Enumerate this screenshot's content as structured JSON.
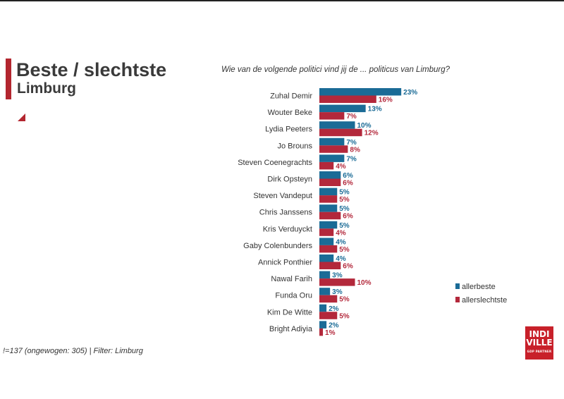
{
  "header": {
    "title": "Beste / slechtste",
    "subtitle": "Limburg",
    "question": "Wie van de volgende politici vind jij de ... politicus van Limburg?"
  },
  "footnote": "!=137 (ongewogen: 305) | Filter: Limburg",
  "logo": {
    "line1": "INDI",
    "line2": "VILLE",
    "tag": "GDP PARTNER"
  },
  "colors": {
    "allerbeste": "#1a6b96",
    "allerslechtste": "#b3283b",
    "accent": "#b3262f"
  },
  "chart_data": {
    "type": "bar",
    "orientation": "horizontal",
    "categories": [
      "Zuhal Demir",
      "Wouter Beke",
      "Lydia Peeters",
      "Jo Brouns",
      "Steven Coenegrachts",
      "Dirk Opsteyn",
      "Steven Vandeput",
      "Chris Janssens",
      "Kris Verduyckt",
      "Gaby Colenbunders",
      "Annick Ponthier",
      "Nawal Farih",
      "Funda Oru",
      "Kim De Witte",
      "Bright Adiyia"
    ],
    "series": [
      {
        "name": "allerbeste",
        "values": [
          23,
          13,
          10,
          7,
          7,
          6,
          5,
          5,
          5,
          4,
          4,
          3,
          3,
          2,
          2
        ]
      },
      {
        "name": "allerslechtste",
        "values": [
          16,
          7,
          12,
          8,
          4,
          6,
          5,
          6,
          4,
          5,
          6,
          10,
          5,
          5,
          1
        ]
      }
    ],
    "value_suffix": "%",
    "xlim": [
      0,
      25
    ],
    "grid": false,
    "legend_position": "right"
  }
}
